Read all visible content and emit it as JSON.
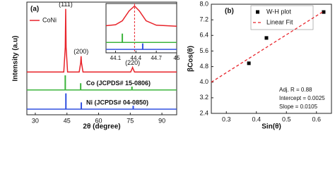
{
  "chart_data": [
    {
      "type": "line",
      "label": "(a)",
      "xlabel": "2θ (degree)",
      "ylabel": "Intensity (a.u)",
      "xlim": [
        26,
        97
      ],
      "xticks": [
        30,
        45,
        60,
        75,
        90
      ],
      "ylim": [
        0,
        100
      ],
      "series": [
        {
          "name": "CoNi",
          "color": "#e8232a",
          "x": [
            26,
            43.5,
            44.2,
            44.4,
            44.6,
            45.3,
            50.8,
            51.5,
            51.7,
            51.9,
            52.6,
            75.2,
            75.9,
            76.1,
            76.3,
            77,
            97
          ],
          "values": [
            38,
            38,
            60,
            94,
            60,
            38,
            38,
            46,
            52,
            46,
            38,
            38,
            41,
            42,
            41,
            38,
            38
          ]
        },
        {
          "name": "Co (JCPDS# 15-0806)",
          "color": "#3cb43c",
          "kind": "stick",
          "baseline": 22,
          "x": [
            44.2,
            51.5,
            75.8
          ],
          "values": [
            35,
            28,
            25
          ]
        },
        {
          "name": "Ni (JCPDS# 04-0850)",
          "color": "#3050e0",
          "kind": "stick",
          "baseline": 5,
          "x": [
            44.5,
            51.8,
            76.4
          ],
          "values": [
            19,
            11,
            8
          ]
        }
      ],
      "annotations": [
        {
          "text": "(111)",
          "x": 44.4
        },
        {
          "text": "(200)",
          "x": 51.7
        },
        {
          "text": "(220)",
          "x": 76.1
        }
      ]
    },
    {
      "type": "line",
      "xlim": [
        43.96,
        45.0
      ],
      "xticks": [
        44.1,
        44.4,
        44.7,
        45
      ],
      "ylim": [
        0,
        100
      ],
      "vline": 44.38,
      "series": [
        {
          "color": "#e8232a",
          "x": [
            43.96,
            44.1,
            44.2,
            44.3,
            44.38,
            44.45,
            44.55,
            44.7,
            45
          ],
          "values": [
            55,
            57,
            65,
            85,
            95,
            85,
            65,
            56,
            54
          ]
        },
        {
          "color": "#3cb43c",
          "kind": "stick",
          "baseline": 21,
          "x": [
            44.2
          ],
          "values": [
            39
          ]
        },
        {
          "color": "#3050e0",
          "kind": "stick",
          "baseline": 7,
          "x": [
            44.5
          ],
          "values": [
            19
          ]
        }
      ]
    },
    {
      "type": "scatter",
      "label": "(b)",
      "xlabel": "Sin(θ)",
      "ylabel": "βCos(θ)",
      "xlim": [
        0.25,
        0.65
      ],
      "xticks": [
        0.3,
        0.4,
        0.5,
        0.6
      ],
      "ylim": [
        2.4,
        8.0
      ],
      "yticks": [
        2.4,
        3.2,
        {
          "value": 4.0,
          "label": "4.0"
        },
        4.8,
        5.6,
        6.4,
        7.2,
        {
          "value": 8.0,
          "label": "8.0"
        }
      ],
      "series": [
        {
          "name": "W-H plot",
          "color": "#000000",
          "kind": "points",
          "x": [
            0.375,
            0.4335,
            0.624
          ],
          "values": [
            4.97,
            6.27,
            7.6
          ]
        },
        {
          "name": "Linear Fit",
          "color": "#e8232a",
          "kind": "dashed",
          "x": [
            0.25,
            0.625
          ],
          "values": [
            4.0,
            7.65
          ]
        }
      ],
      "annotations": [
        "Adj. R = 0.88",
        "Intercept = 0.0025",
        "Slope = 0.0105"
      ]
    }
  ]
}
